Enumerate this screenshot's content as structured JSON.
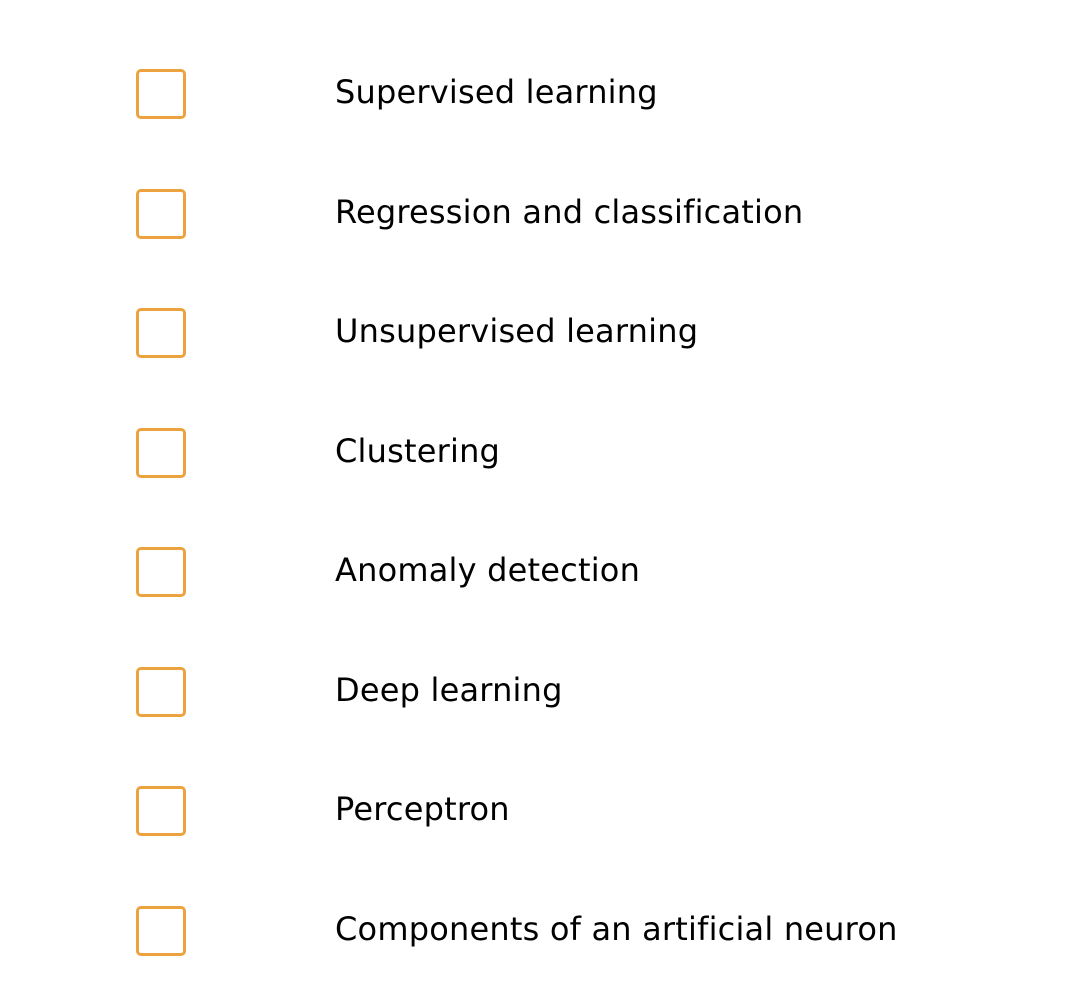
{
  "theme": {
    "checkbox_border_color": "#ECA33F",
    "text_color": "#000000",
    "background": "#ffffff"
  },
  "checklist": {
    "items": [
      {
        "label": "Supervised learning",
        "checked": false
      },
      {
        "label": "Regression and classification",
        "checked": false
      },
      {
        "label": "Unsupervised learning",
        "checked": false
      },
      {
        "label": "Clustering",
        "checked": false
      },
      {
        "label": "Anomaly detection",
        "checked": false
      },
      {
        "label": "Deep learning",
        "checked": false
      },
      {
        "label": "Perceptron",
        "checked": false
      },
      {
        "label": "Components of an artificial neuron",
        "checked": false
      }
    ]
  }
}
